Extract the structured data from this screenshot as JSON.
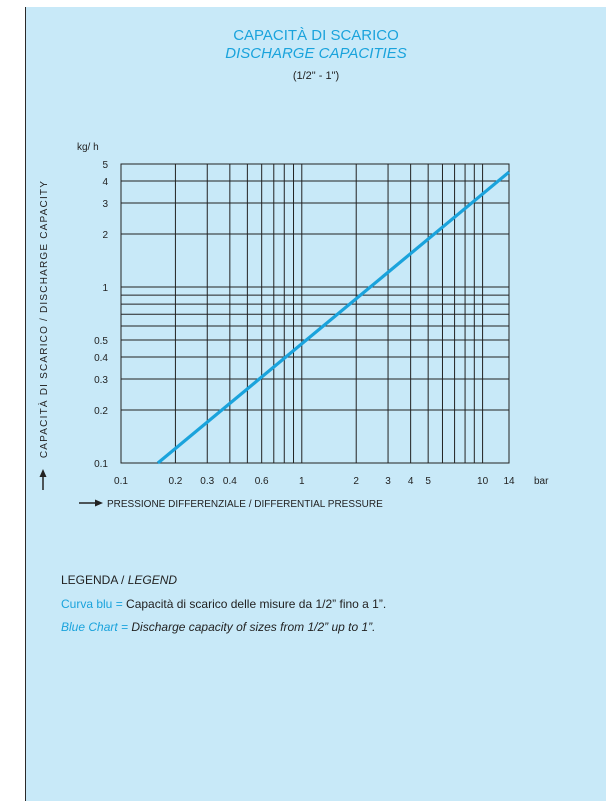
{
  "header": {
    "title_it": "CAPACITÀ DI SCARICO",
    "title_en": "DISCHARGE CAPACITIES",
    "size_range": "(1/2\" - 1\")"
  },
  "colors": {
    "panel_bg": "#c8e9f8",
    "accent_blue": "#1aa3dc",
    "grid": "#222222"
  },
  "chart_data": {
    "type": "line",
    "title": "CAPACITÀ DI SCARICO / DISCHARGE CAPACITIES",
    "subtitle": "(1/2\" - 1\")",
    "xlabel": "PRESSIONE DIFFERENZIALE / DIFFERENTIAL PRESSURE",
    "ylabel": "CAPACITÀ DI SCARICO / DISCHARGE CAPACITY",
    "x_unit": "bar",
    "y_unit": "kg/ h",
    "x_scale": "log",
    "y_scale": "log",
    "xlim": [
      0.1,
      14
    ],
    "ylim": [
      0.1,
      5
    ],
    "grid": true,
    "x_ticks": [
      0.1,
      0.2,
      0.3,
      0.4,
      0.6,
      1,
      2,
      3,
      4,
      5,
      10,
      14
    ],
    "x_tick_labels": [
      "0.1",
      "0.2",
      "0.3",
      "0.4",
      "0.6",
      "1",
      "2",
      "3",
      "4",
      "5",
      "10",
      "14"
    ],
    "x_gridlines": [
      0.1,
      0.2,
      0.3,
      0.4,
      0.5,
      0.6,
      0.7,
      0.8,
      0.9,
      1,
      2,
      3,
      4,
      5,
      6,
      7,
      8,
      9,
      10,
      14
    ],
    "y_ticks": [
      0.1,
      0.2,
      0.3,
      0.4,
      0.5,
      1,
      2,
      3,
      4,
      5
    ],
    "y_tick_labels": [
      "0.1",
      "0.2",
      "0.3",
      "0.4",
      "0.5",
      "1",
      "2",
      "3",
      "4",
      "5"
    ],
    "y_gridlines": [
      0.1,
      0.2,
      0.3,
      0.4,
      0.5,
      0.6,
      0.7,
      0.8,
      0.9,
      1,
      2,
      3,
      4,
      5
    ],
    "series": [
      {
        "name": "Curva blu",
        "color": "#1aa3dc",
        "x": [
          0.16,
          14
        ],
        "y": [
          0.1,
          4.5
        ]
      }
    ]
  },
  "legend": {
    "title_it": "LEGENDA / ",
    "title_en": "LEGEND",
    "row1_label": "Curva blu",
    "row1_sep": " = ",
    "row1_text": "Capacità di scarico delle misure da 1/2” fino a 1”.",
    "row2_label": "Blue Chart",
    "row2_sep": " = ",
    "row2_text": "Discharge capacity of sizes from 1/2” up to 1”."
  }
}
